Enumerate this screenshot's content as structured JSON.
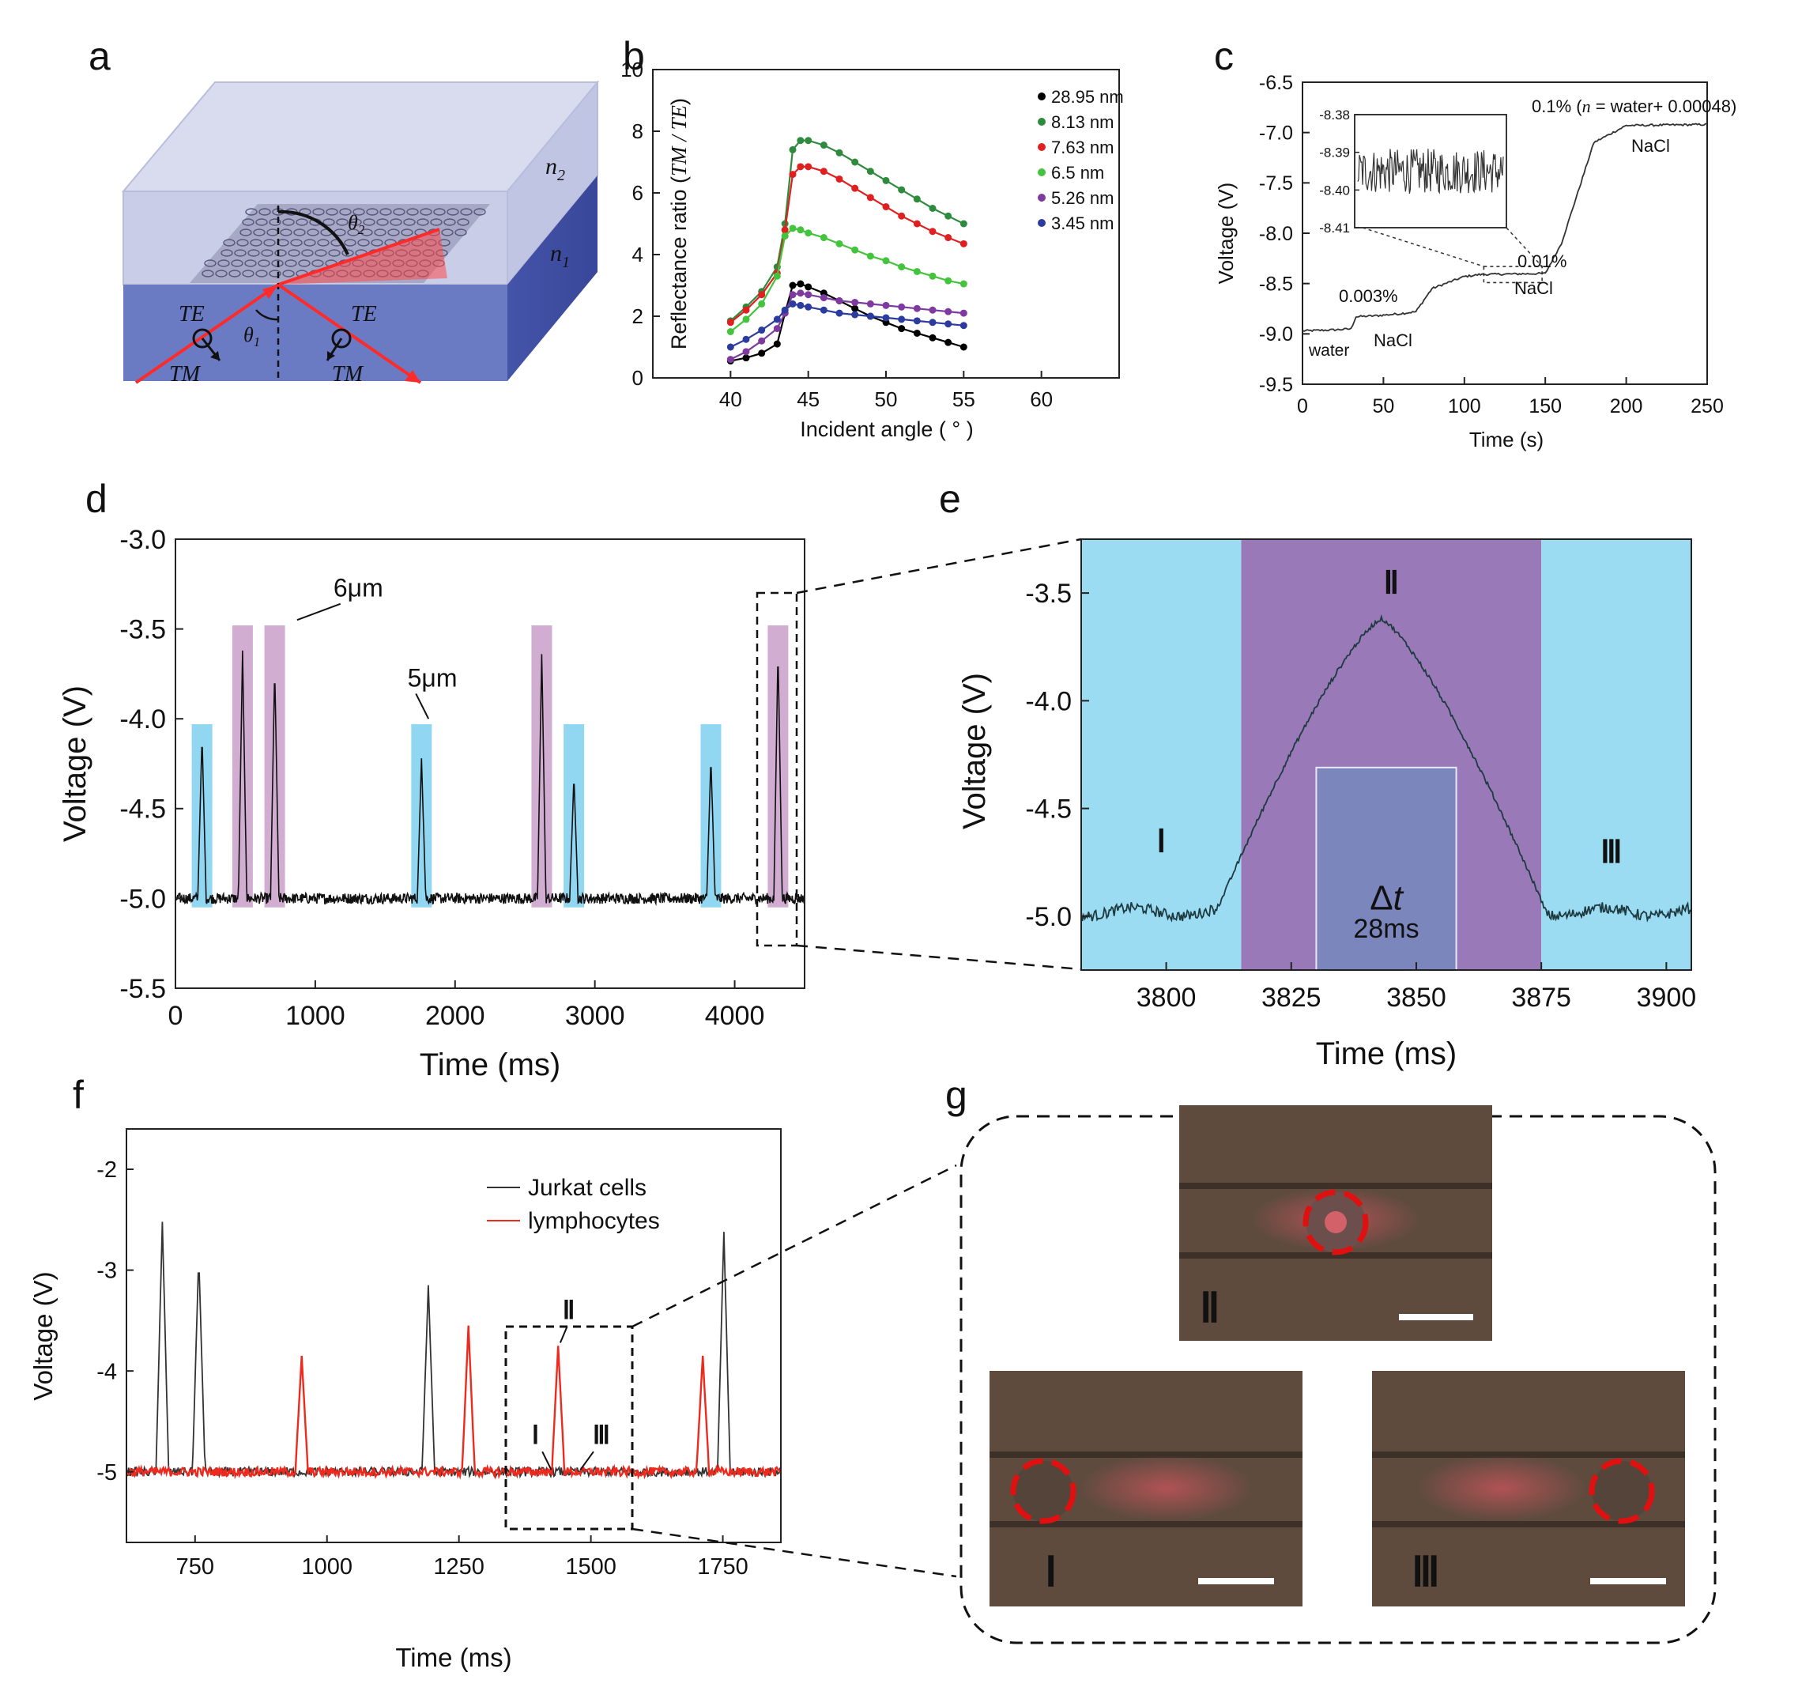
{
  "panel_labels": {
    "a": "a",
    "b": "b",
    "c": "c",
    "d": "d",
    "e": "e",
    "f": "f",
    "g": "g"
  },
  "panel_a": {
    "n2": "n",
    "n2_sub": "2",
    "n1": "n",
    "n1_sub": "1",
    "theta1": "θ",
    "theta1_sub": "1",
    "theta2": "θ",
    "theta2_sub": "2",
    "te_left": "TE",
    "tm_left": "TM",
    "te_right": "TE",
    "tm_right": "TM"
  },
  "chart_data": [
    {
      "id": "b",
      "type": "scatter",
      "title": "",
      "xlabel": "Incident angle ( ° )",
      "ylabel_prefix": "Reflectance ratio (",
      "ylabel_ital": "TM / TE",
      "ylabel_suffix": ")",
      "xlim": [
        35,
        65
      ],
      "ylim": [
        0,
        10
      ],
      "xticks": [
        40,
        45,
        50,
        55,
        60
      ],
      "yticks": [
        0,
        2,
        4,
        6,
        8,
        10
      ],
      "legend_position": "top-right",
      "series": [
        {
          "name": "28.95 nm",
          "color": "#000000",
          "x": [
            40,
            41,
            42,
            43,
            43.5,
            44,
            44.5,
            45,
            46,
            47,
            48,
            49,
            50,
            51,
            52,
            53,
            54,
            55
          ],
          "y": [
            0.55,
            0.65,
            0.8,
            1.1,
            2.1,
            3.0,
            3.05,
            2.95,
            2.75,
            2.5,
            2.25,
            2.0,
            1.8,
            1.6,
            1.45,
            1.3,
            1.15,
            1.0
          ]
        },
        {
          "name": "8.13 nm",
          "color": "#2e8b3e",
          "x": [
            40,
            41,
            42,
            43,
            43.5,
            44,
            44.5,
            45,
            46,
            47,
            48,
            49,
            50,
            51,
            52,
            53,
            54,
            55
          ],
          "y": [
            1.85,
            2.3,
            2.8,
            3.6,
            5.0,
            7.4,
            7.7,
            7.7,
            7.55,
            7.3,
            7.0,
            6.7,
            6.4,
            6.1,
            5.8,
            5.5,
            5.25,
            5.0
          ]
        },
        {
          "name": "7.63 nm",
          "color": "#e02020",
          "x": [
            40,
            41,
            42,
            43,
            43.5,
            44,
            44.5,
            45,
            46,
            47,
            48,
            49,
            50,
            51,
            52,
            53,
            54,
            55
          ],
          "y": [
            1.8,
            2.2,
            2.7,
            3.4,
            4.8,
            6.6,
            6.85,
            6.85,
            6.7,
            6.45,
            6.15,
            5.85,
            5.55,
            5.25,
            5.0,
            4.75,
            4.55,
            4.35
          ]
        },
        {
          "name": "6.5   nm",
          "color": "#44c43c",
          "x": [
            40,
            41,
            42,
            43,
            43.5,
            44,
            44.5,
            45,
            46,
            47,
            48,
            49,
            50,
            51,
            52,
            53,
            54,
            55
          ],
          "y": [
            1.5,
            1.9,
            2.4,
            3.3,
            4.6,
            4.85,
            4.8,
            4.7,
            4.55,
            4.35,
            4.15,
            3.95,
            3.8,
            3.6,
            3.45,
            3.3,
            3.15,
            3.05
          ]
        },
        {
          "name": "5.26 nm",
          "color": "#7e3a9e",
          "x": [
            40,
            41,
            42,
            43,
            43.5,
            44,
            44.5,
            45,
            46,
            47,
            48,
            49,
            50,
            51,
            52,
            53,
            54,
            55
          ],
          "y": [
            0.6,
            0.85,
            1.2,
            1.6,
            2.1,
            2.7,
            2.75,
            2.7,
            2.6,
            2.5,
            2.45,
            2.4,
            2.35,
            2.3,
            2.25,
            2.2,
            2.15,
            2.1
          ]
        },
        {
          "name": "3.45 nm",
          "color": "#2c3b9e",
          "x": [
            40,
            41,
            42,
            43,
            43.5,
            44,
            44.5,
            45,
            46,
            47,
            48,
            49,
            50,
            51,
            52,
            53,
            54,
            55
          ],
          "y": [
            1.0,
            1.25,
            1.55,
            1.9,
            2.2,
            2.4,
            2.35,
            2.3,
            2.2,
            2.1,
            2.05,
            2.0,
            1.95,
            1.9,
            1.85,
            1.8,
            1.75,
            1.7
          ]
        }
      ]
    },
    {
      "id": "c",
      "type": "line",
      "xlabel": "Time (s)",
      "ylabel": "Voltage (V)",
      "xlim": [
        0,
        250
      ],
      "ylim": [
        -9.5,
        -6.5
      ],
      "xticks": [
        0,
        50,
        100,
        150,
        200,
        250
      ],
      "yticks": [
        -9.5,
        -9.0,
        -8.5,
        -8.0,
        -7.5,
        -7.0,
        -6.5
      ],
      "series": [
        {
          "name": "signal",
          "color": "#333333",
          "x": [
            0,
            20,
            30,
            33,
            45,
            60,
            70,
            80,
            100,
            110,
            150,
            160,
            170,
            180,
            200,
            250
          ],
          "y": [
            -8.97,
            -8.96,
            -8.95,
            -8.83,
            -8.82,
            -8.8,
            -8.78,
            -8.55,
            -8.43,
            -8.41,
            -8.4,
            -8.1,
            -7.6,
            -7.1,
            -6.93,
            -6.92
          ]
        }
      ],
      "annotations": [
        {
          "text": "water",
          "x": 5,
          "y": -9.18
        },
        {
          "text": "0.003%",
          "x": 37,
          "y": -8.67
        },
        {
          "text": "NaCl",
          "x": 58,
          "y": -9.12
        },
        {
          "text": "0.01%",
          "x": 110,
          "y": -8.25
        },
        {
          "text": "NaCl",
          "x": 108,
          "y": -8.55
        },
        {
          "text": "0.1% (",
          "x": 144,
          "y": -6.83
        },
        {
          "text": "n",
          "x": 0,
          "y": 0
        },
        {
          "text": "= water+ 0.00048)",
          "x": 0,
          "y": 0
        },
        {
          "text": "NaCl",
          "x": 178,
          "y": -7.18
        }
      ],
      "inset": {
        "yticks": [
          -8.38,
          -8.39,
          -8.4,
          -8.41
        ],
        "ylim": [
          -8.41,
          -8.38
        ]
      }
    },
    {
      "id": "d",
      "type": "line",
      "xlabel": "Time (ms)",
      "ylabel": "Voltage (V)",
      "xlim": [
        0,
        4500
      ],
      "ylim": [
        -5.5,
        -3.0
      ],
      "xticks": [
        0,
        1000,
        2000,
        3000,
        4000
      ],
      "yticks": [
        -5.5,
        -5.0,
        -4.5,
        -4.0,
        -3.5,
        -3.0
      ],
      "baseline": -5.0,
      "peaks": [
        {
          "t": 190,
          "v": -4.1,
          "cls": "5um"
        },
        {
          "t": 480,
          "v": -3.62,
          "cls": "6um"
        },
        {
          "t": 710,
          "v": -3.72,
          "cls": "6um"
        },
        {
          "t": 1760,
          "v": -4.22,
          "cls": "5um"
        },
        {
          "t": 2620,
          "v": -3.64,
          "cls": "6um"
        },
        {
          "t": 2850,
          "v": -4.32,
          "cls": "5um"
        },
        {
          "t": 3830,
          "v": -4.22,
          "cls": "5um"
        },
        {
          "t": 4310,
          "v": -3.62,
          "cls": "6um"
        }
      ],
      "annotations": [
        {
          "text": "6μm",
          "x": 1130,
          "y": -3.32
        },
        {
          "text": "5μm",
          "x": 1680,
          "y": -3.82
        }
      ]
    },
    {
      "id": "e",
      "type": "line",
      "xlabel": "Time (ms)",
      "ylabel": "Voltage (V)",
      "xlim": [
        3783,
        3905
      ],
      "ylim": [
        -5.25,
        -3.25
      ],
      "xticks": [
        3800,
        3825,
        3850,
        3875,
        3900
      ],
      "yticks": [
        -5.0,
        -4.5,
        -4.0,
        -3.5
      ],
      "regions": [
        {
          "label": "Ⅰ",
          "from": 3783,
          "to": 3815
        },
        {
          "label": "Ⅱ",
          "from": 3815,
          "to": 3875
        },
        {
          "label": "Ⅲ",
          "from": 3875,
          "to": 3905
        }
      ],
      "peak": {
        "t": 3843,
        "v": -3.62
      },
      "baseline": -4.98,
      "dt_box": {
        "from": 3830,
        "to": 3858,
        "label_symbol": "Δ",
        "label_var": "t",
        "label_value": "28ms"
      }
    },
    {
      "id": "f",
      "type": "line",
      "xlabel": "Time (ms)",
      "ylabel": "Voltage (V)",
      "xlim": [
        620,
        1860
      ],
      "ylim": [
        -5.7,
        -1.6
      ],
      "xticks": [
        750,
        1000,
        1250,
        1500,
        1750
      ],
      "yticks": [
        -5,
        -4,
        -3,
        -2
      ],
      "legend_position": "top-right",
      "series": [
        {
          "name": "Jurkat cells",
          "color": "#333333",
          "peaks": [
            {
              "t": 688,
              "v": -2.52
            },
            {
              "t": 757,
              "v": -2.85
            },
            {
              "t": 1192,
              "v": -3.15
            },
            {
              "t": 1752,
              "v": -2.62
            }
          ]
        },
        {
          "name": "lymphocytes",
          "color": "#ee2a1e",
          "peaks": [
            {
              "t": 952,
              "v": -3.85
            },
            {
              "t": 1268,
              "v": -3.55
            },
            {
              "t": 1438,
              "v": -3.75
            },
            {
              "t": 1712,
              "v": -3.85
            }
          ]
        }
      ],
      "annotations": [
        {
          "text": "Ⅰ",
          "x": 1400,
          "y": -4.65
        },
        {
          "text": "Ⅱ",
          "x": 1455,
          "y": -3.45
        },
        {
          "text": "Ⅲ",
          "x": 1525,
          "y": -4.65
        }
      ]
    }
  ],
  "panel_g": {
    "img_top_label": "Ⅱ",
    "img_left_label": "Ⅰ",
    "img_right_label": "Ⅲ"
  }
}
